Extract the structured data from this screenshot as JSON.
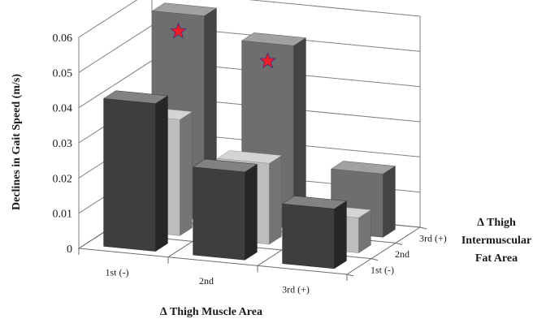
{
  "chart_data": {
    "type": "bar",
    "title": "",
    "ylabel": "Declines in Gait Speed (m/s)",
    "xlabel": "∆ Thigh Muscle Area",
    "zlabel": [
      "∆ Thigh",
      "Intermuscular",
      "Fat Area"
    ],
    "ylim": [
      0,
      0.06
    ],
    "yticks": [
      "0",
      "0.01",
      "0.02",
      "0.03",
      "0.04",
      "0.05",
      "0.06"
    ],
    "categories": [
      "1st (-)",
      "2nd",
      "3rd (+)"
    ],
    "series": [
      {
        "name": "1st (-)",
        "values": [
          0.042,
          0.025,
          0.017
        ],
        "color": "#3e3e3e"
      },
      {
        "name": "2nd",
        "values": [
          0.033,
          0.023,
          0.01
        ],
        "color": "#bdbdbd"
      },
      {
        "name": "3rd (+)",
        "values": [
          0.058,
          0.052,
          0.018
        ],
        "color": "#6e6e6e"
      }
    ],
    "markers": [
      {
        "series": "3rd (+)",
        "category": "1st (-)",
        "symbol": "star",
        "color": "#ee1c25"
      },
      {
        "series": "3rd (+)",
        "category": "2nd",
        "symbol": "star",
        "color": "#ee1c25"
      }
    ],
    "grid": true,
    "legend": "none"
  }
}
